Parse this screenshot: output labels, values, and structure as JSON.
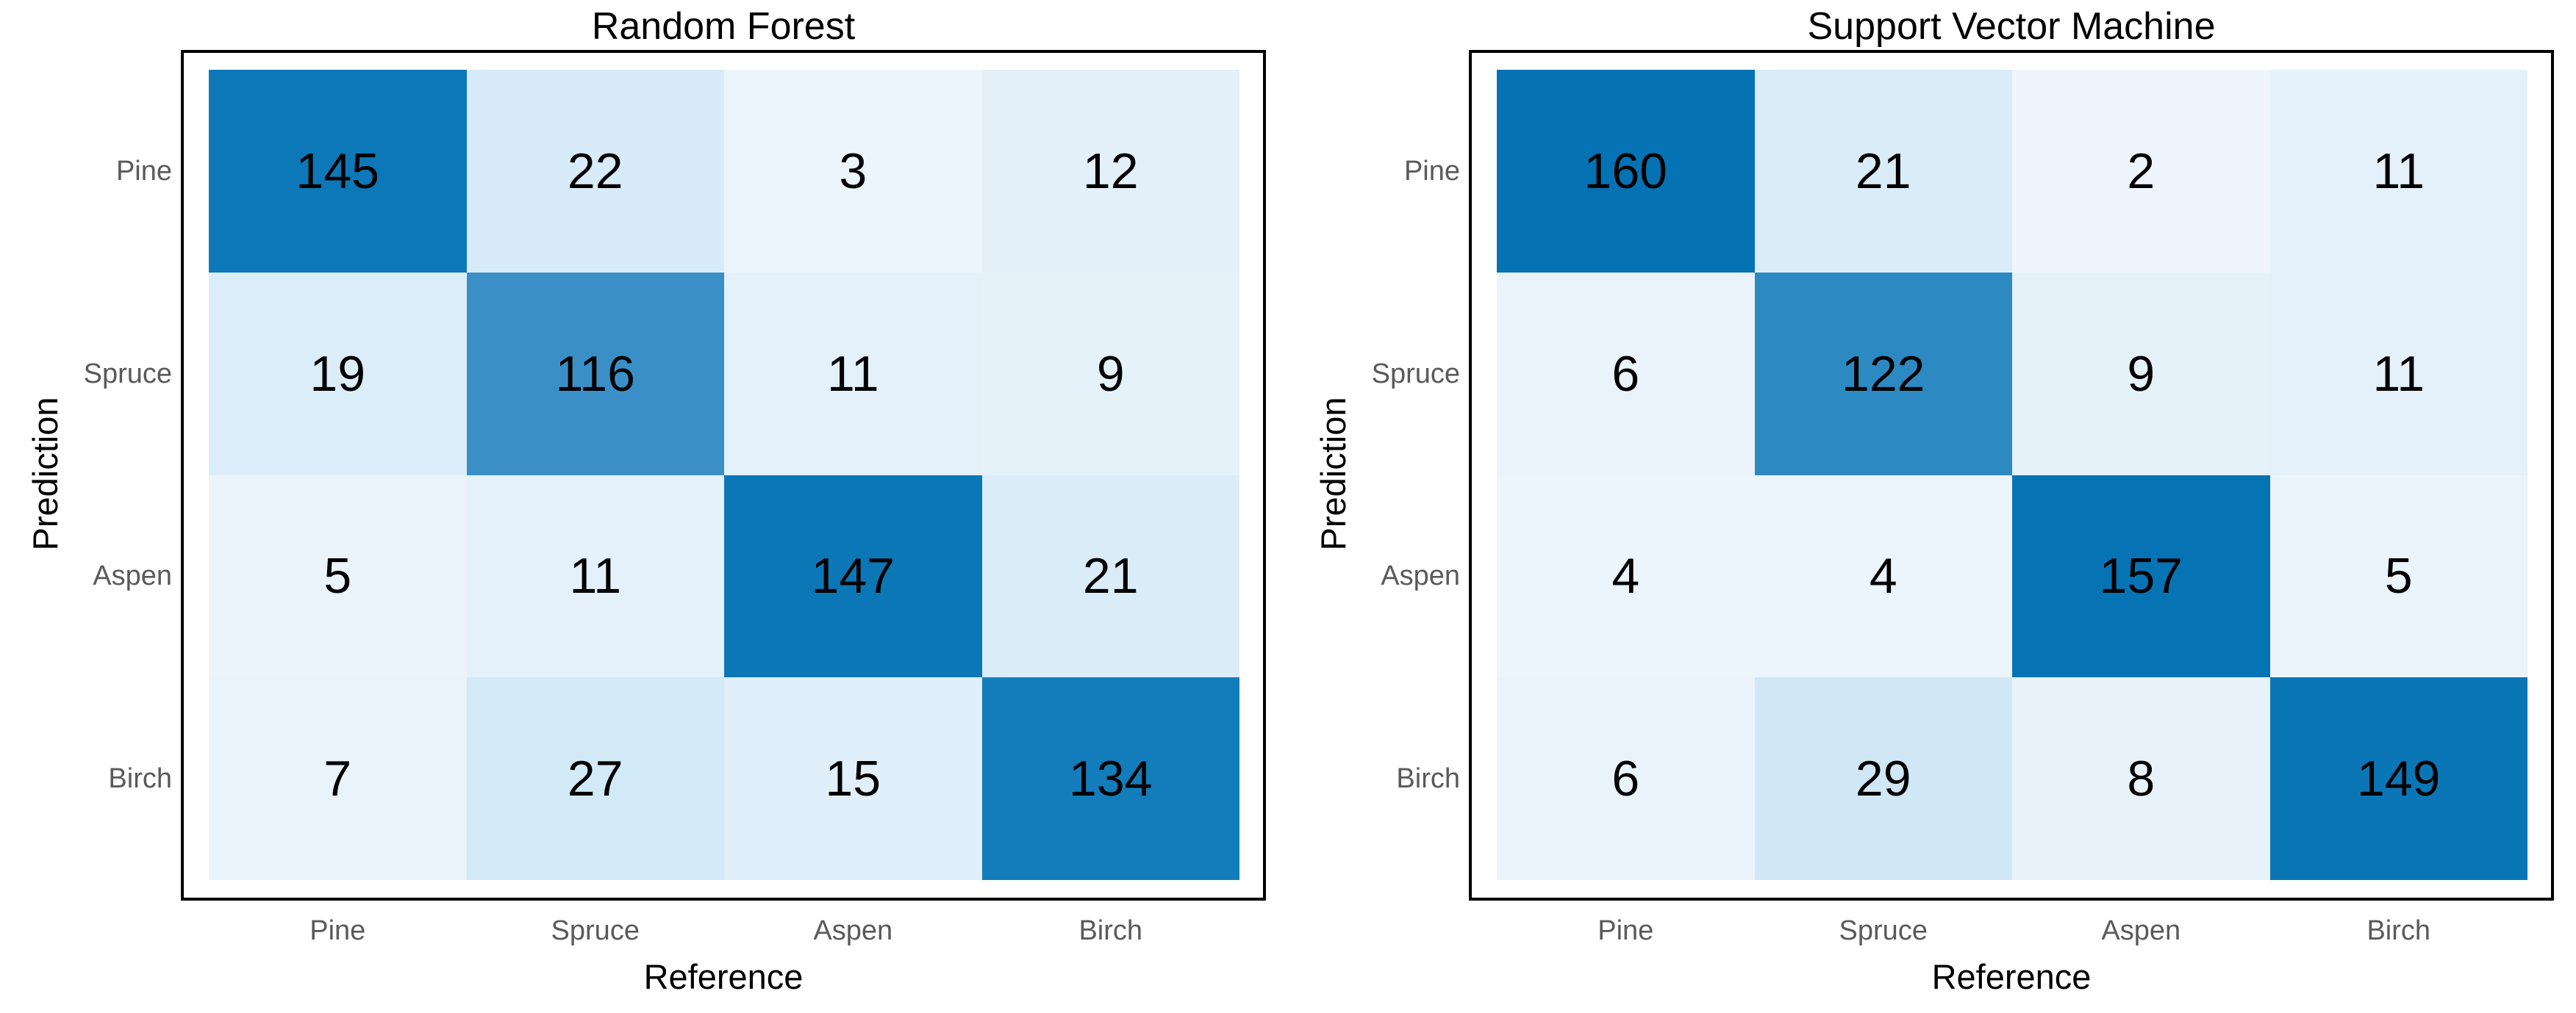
{
  "figure": {
    "background_color": "#ffffff",
    "panel_border_color": "#000000",
    "tick_label_color": "#5a5a5a",
    "axis_title_color": "#000000",
    "cell_text_color": "#000000"
  },
  "chart_data": [
    {
      "type": "heatmap",
      "title": "Random Forest",
      "xlabel": "Reference",
      "ylabel": "Prediction",
      "x_categories": [
        "Pine",
        "Spruce",
        "Aspen",
        "Birch"
      ],
      "y_categories": [
        "Pine",
        "Spruce",
        "Aspen",
        "Birch"
      ],
      "rows": [
        [
          145,
          22,
          3,
          12
        ],
        [
          19,
          116,
          11,
          9
        ],
        [
          5,
          11,
          147,
          21
        ],
        [
          7,
          27,
          15,
          134
        ]
      ],
      "layout": {
        "legend": "none",
        "grid": "off"
      },
      "color_scale": {
        "min_value": 2,
        "max_value": 160,
        "stops": [
          {
            "value": 2,
            "color": "#eef5fc"
          },
          {
            "value": 29,
            "color": "#d0e8f6"
          },
          {
            "value": 116,
            "color": "#3a90c6"
          },
          {
            "value": 134,
            "color": "#137cba"
          },
          {
            "value": 160,
            "color": "#0472b3"
          }
        ]
      }
    },
    {
      "type": "heatmap",
      "title": "Support Vector Machine",
      "xlabel": "Reference",
      "ylabel": "Prediction",
      "x_categories": [
        "Pine",
        "Spruce",
        "Aspen",
        "Birch"
      ],
      "y_categories": [
        "Pine",
        "Spruce",
        "Aspen",
        "Birch"
      ],
      "rows": [
        [
          160,
          21,
          2,
          11
        ],
        [
          6,
          122,
          9,
          11
        ],
        [
          4,
          4,
          157,
          5
        ],
        [
          6,
          29,
          8,
          149
        ]
      ],
      "layout": {
        "legend": "none",
        "grid": "off"
      },
      "color_scale": {
        "min_value": 2,
        "max_value": 160,
        "stops": [
          {
            "value": 2,
            "color": "#eef5fc"
          },
          {
            "value": 29,
            "color": "#d0e8f6"
          },
          {
            "value": 116,
            "color": "#3a90c6"
          },
          {
            "value": 134,
            "color": "#137cba"
          },
          {
            "value": 160,
            "color": "#0472b3"
          }
        ]
      }
    }
  ]
}
